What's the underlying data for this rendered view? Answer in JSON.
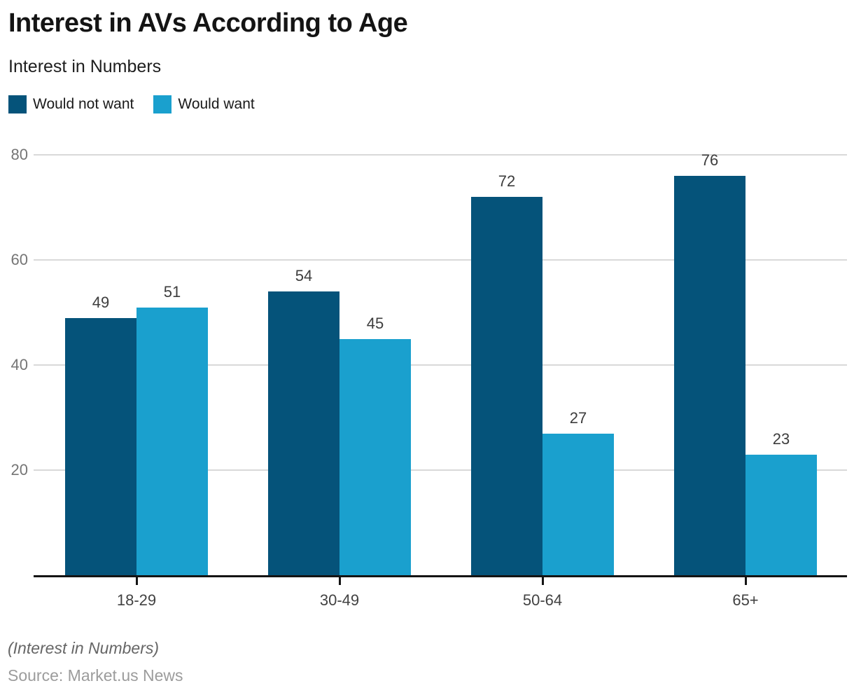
{
  "title": "Interest in AVs According to Age",
  "subtitle": "Interest in Numbers",
  "legend": {
    "items": [
      {
        "label": "Would not want",
        "color": "#05537a"
      },
      {
        "label": "Would want",
        "color": "#1aa0ce"
      }
    ]
  },
  "chart_data": {
    "type": "bar",
    "categories": [
      "18-29",
      "30-49",
      "50-64",
      "65+"
    ],
    "series": [
      {
        "name": "Would not want",
        "color": "#05537a",
        "values": [
          49,
          54,
          72,
          76
        ]
      },
      {
        "name": "Would want",
        "color": "#1aa0ce",
        "values": [
          51,
          45,
          27,
          23
        ]
      }
    ],
    "title": "Interest in AVs According to Age",
    "subtitle": "Interest in Numbers",
    "xlabel": "",
    "ylabel": "",
    "yticks": [
      20,
      40,
      60,
      80
    ],
    "ylim": [
      0,
      84
    ],
    "grid": true,
    "legend_position": "top-left",
    "value_labels": true,
    "grid_color": "#d9d9d9",
    "axis_color": "#141414"
  },
  "footer": {
    "footnote": "(Interest in Numbers)",
    "source": "Source: Market.us News"
  }
}
